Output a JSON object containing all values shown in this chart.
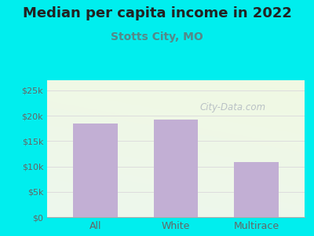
{
  "title": "Median per capita income in 2022",
  "subtitle": "Stotts City, MO",
  "categories": [
    "All",
    "White",
    "Multirace"
  ],
  "values": [
    18500,
    19200,
    10800
  ],
  "bar_color": "#c2afd4",
  "title_fontsize": 13,
  "subtitle_fontsize": 10,
  "subtitle_color": "#558888",
  "title_color": "#222222",
  "background_color": "#00eeee",
  "ylim": [
    0,
    27000
  ],
  "yticks": [
    0,
    5000,
    10000,
    15000,
    20000,
    25000
  ],
  "ytick_labels": [
    "$0",
    "$5k",
    "$10k",
    "$15k",
    "$20k",
    "$25k"
  ],
  "tick_color": "#666666",
  "grid_color": "#dddddd",
  "watermark": "City-Data.com"
}
